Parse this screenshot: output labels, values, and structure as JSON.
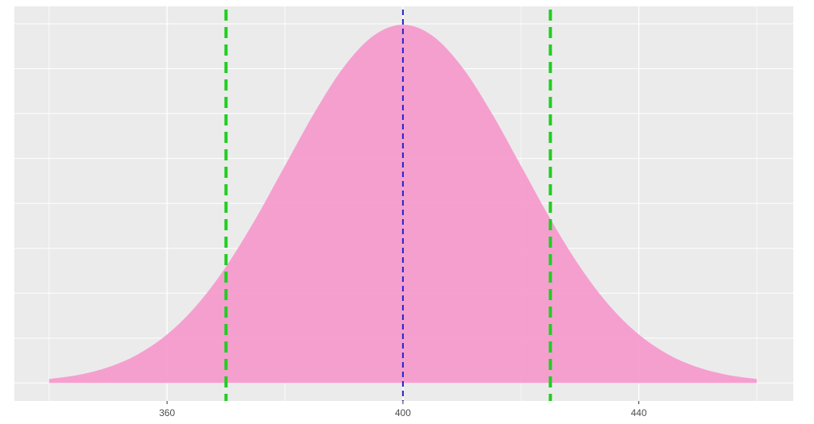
{
  "chart_data": {
    "type": "area",
    "x": [
      340,
      345,
      350,
      355,
      360,
      365,
      370,
      375,
      380,
      385,
      390,
      395,
      400,
      405,
      410,
      415,
      420,
      425,
      430,
      435,
      440,
      445,
      450,
      455,
      460
    ],
    "values": [
      0.000222,
      0.000455,
      0.000876,
      0.001587,
      0.0027,
      0.004314,
      0.006476,
      0.009132,
      0.012099,
      0.015056,
      0.017603,
      0.019333,
      0.019947,
      0.019333,
      0.017603,
      0.015056,
      0.012099,
      0.009132,
      0.006476,
      0.004314,
      0.0027,
      0.001587,
      0.000876,
      0.000455,
      0.000222
    ],
    "color": "#f59bce",
    "xlim": [
      334.1,
      466.2
    ],
    "ylim": [
      -0.001,
      0.02097
    ],
    "xticks": [
      360,
      400,
      440
    ],
    "xminor": [
      340,
      380,
      420,
      460
    ],
    "yticks": [
      0,
      0.0025,
      0.005,
      0.0075,
      0.01,
      0.0125,
      0.015,
      0.0175,
      0.02
    ],
    "grid": true,
    "vlines": [
      {
        "x": 370,
        "color": "#22cc22"
      },
      {
        "x": 400,
        "color": "#2222cc"
      },
      {
        "x": 425,
        "color": "#22cc22"
      }
    ]
  }
}
